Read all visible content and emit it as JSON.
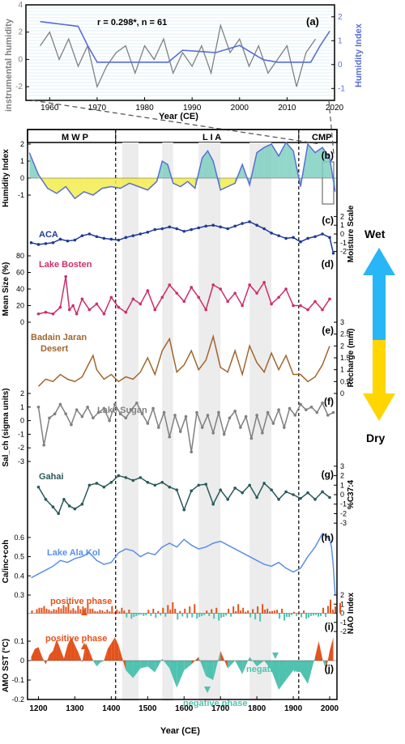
{
  "figure": {
    "top_panel": {
      "label": "(a)",
      "stat": "r = 0.298*, n = 61",
      "y_left_label": "instrumental humidity",
      "y_right_label": "Humidity Index",
      "x_label": "Year (CE)",
      "x_ticks": [
        "1960",
        "1970",
        "1980",
        "1990",
        "2000",
        "2010",
        "2020"
      ],
      "y_left_ticks": [
        "4",
        "2",
        "0",
        "-2"
      ],
      "y_right_ticks": [
        "2",
        "1",
        "0",
        "-1"
      ],
      "colors": {
        "instrumental": "#808080",
        "humidity": "#5a6fd6"
      }
    },
    "periods": {
      "mwp": "M W P",
      "lia": "L I A",
      "cmp": "CMP"
    },
    "x_axis": {
      "label": "Year (CE)",
      "ticks": [
        "1200",
        "1300",
        "1400",
        "1500",
        "1600",
        "1700",
        "1800",
        "1900",
        "2000"
      ]
    },
    "moisture_arrow": {
      "wet": "Wet",
      "dry": "Dry",
      "wet_color": "#29b6f6",
      "dry_color": "#ffd600"
    },
    "panels": [
      {
        "id": "b",
        "label": "(b)",
        "y_label": "Humidity Index",
        "ticks": [
          "2",
          "1",
          "0",
          "-1"
        ],
        "side": "left",
        "color": "#5a6fd6"
      },
      {
        "id": "c",
        "label": "(c)",
        "name": "ACA",
        "y_label": "Moisture Scale",
        "ticks": [
          "-2",
          "-1",
          "0",
          "1",
          "2"
        ],
        "side": "right",
        "color": "#1f3a93"
      },
      {
        "id": "d",
        "label": "(d)",
        "name": "Lake Bosten",
        "y_label": "Mean Size (%)",
        "ticks": [
          "80",
          "60",
          "40",
          "20",
          "0"
        ],
        "side": "left",
        "color": "#cc2e6b"
      },
      {
        "id": "e",
        "label": "(e)",
        "name": "Badain Jaran Desert",
        "y_label": "Recharge (mm)",
        "ticks": [
          "3",
          "2.5",
          "2",
          "1.5",
          "1",
          "0.5",
          "0"
        ],
        "side": "right",
        "color": "#a0662e"
      },
      {
        "id": "f",
        "label": "(f)",
        "name": "Lake Sugan",
        "y_label": "Sal_ch (sigma units)",
        "ticks": [
          "-3",
          "-2",
          "-1",
          "0",
          "1",
          "2"
        ],
        "side": "left",
        "color": "#808080"
      },
      {
        "id": "g",
        "label": "(g)",
        "name": "Gahai",
        "y_label": "%C37:4",
        "ticks": [
          "-3",
          "-2",
          "-1",
          "0",
          "1",
          "2",
          "3"
        ],
        "side": "right",
        "color": "#2a5a5a"
      },
      {
        "id": "h",
        "label": "(h)",
        "name": "Lake Ala Kol",
        "y_label": "Ca/inc+coh",
        "ticks": [
          "0.6",
          "0.5",
          "0.4",
          "0.3"
        ],
        "side": "left",
        "color": "#5b8fe8"
      },
      {
        "id": "i",
        "label": "(i)",
        "name": "NAO Index",
        "ticks": [
          "2",
          "1",
          "0",
          "-1",
          "-2"
        ],
        "side": "right",
        "positive_label": "positive phase",
        "colors": {
          "pos": "#e4521b",
          "neg": "#4fc2b0"
        }
      },
      {
        "id": "j",
        "label": "(j)",
        "y_label": "AMO SST (°C)",
        "ticks": [
          "0.1",
          "0",
          "-0.1",
          "-0.2"
        ],
        "side": "left",
        "positive_label": "positive phase",
        "negative_label_1": "negative phase",
        "negative_label_2": "negative phase",
        "colors": {
          "pos": "#e4521b",
          "neg": "#4fc2b0"
        }
      }
    ]
  },
  "chart_data": [
    {
      "type": "line",
      "panel": "a",
      "title": "",
      "xlabel": "Year (CE)",
      "ylabel": "instrumental humidity",
      "y2label": "Humidity Index",
      "xlim": [
        1955,
        2020
      ],
      "ylim": [
        -3,
        4
      ],
      "y2lim": [
        -1.5,
        2.5
      ],
      "series": [
        {
          "name": "instrumental humidity",
          "axis": "left",
          "x": [
            1958,
            1960,
            1962,
            1964,
            1966,
            1968,
            1970,
            1972,
            1974,
            1976,
            1978,
            1980,
            1982,
            1984,
            1986,
            1988,
            1990,
            1992,
            1994,
            1996,
            1998,
            2000,
            2002,
            2004,
            2006,
            2008,
            2010,
            2012,
            2014,
            2016
          ],
          "y": [
            1.0,
            2.0,
            0.0,
            1.5,
            -0.5,
            1.0,
            -2.0,
            -0.5,
            0.5,
            1.0,
            -1.0,
            1.0,
            0.0,
            1.5,
            -1.0,
            0.5,
            -0.5,
            1.0,
            -1.0,
            2.5,
            0.5,
            1.5,
            -0.5,
            1.0,
            -1.0,
            0.0,
            1.0,
            -2.0,
            0.5,
            1.5
          ]
        },
        {
          "name": "Humidity Index",
          "axis": "right",
          "x": [
            1958,
            1962,
            1966,
            1968,
            1970,
            1975,
            1985,
            1988,
            1995,
            2000,
            2005,
            2008,
            2012,
            2015,
            2017,
            2019
          ],
          "y": [
            1.8,
            1.7,
            1.6,
            0.8,
            0.1,
            0.1,
            0.1,
            0.6,
            0.5,
            0.8,
            0.2,
            0.1,
            0.1,
            0.1,
            0.8,
            1.4
          ]
        }
      ]
    },
    {
      "type": "area",
      "panel": "b",
      "xlim": [
        1170,
        2020
      ],
      "ylabel": "Humidity Index",
      "ylim": [
        -2,
        2
      ],
      "x": [
        1175,
        1200,
        1225,
        1250,
        1275,
        1300,
        1325,
        1350,
        1375,
        1400,
        1425,
        1450,
        1475,
        1500,
        1525,
        1540,
        1555,
        1570,
        1590,
        1610,
        1630,
        1650,
        1665,
        1680,
        1700,
        1720,
        1740,
        1760,
        1780,
        1800,
        1820,
        1840,
        1860,
        1880,
        1900,
        1920,
        1940,
        1960,
        1980,
        2000,
        2015
      ],
      "y": [
        1.5,
        0.2,
        -0.6,
        -0.9,
        -0.5,
        -1.2,
        -0.8,
        -1.0,
        -0.6,
        -0.5,
        -0.6,
        -0.3,
        -0.5,
        -0.7,
        -0.2,
        1.0,
        0.8,
        -0.3,
        -0.5,
        -0.2,
        -0.6,
        1.2,
        1.6,
        1.0,
        -0.7,
        -0.5,
        -0.3,
        0.8,
        -0.4,
        1.5,
        1.8,
        2.0,
        1.3,
        2.1,
        1.6,
        -0.5,
        2.0,
        1.5,
        1.8,
        1.2,
        -0.8
      ]
    },
    {
      "type": "line",
      "panel": "c",
      "name": "ACA",
      "ylabel": "Moisture Scale",
      "ylim": [
        -2.5,
        2.5
      ],
      "x": [
        1180,
        1200,
        1220,
        1240,
        1260,
        1280,
        1300,
        1320,
        1340,
        1360,
        1380,
        1400,
        1420,
        1440,
        1460,
        1480,
        1500,
        1520,
        1540,
        1560,
        1580,
        1600,
        1620,
        1640,
        1660,
        1680,
        1700,
        1720,
        1740,
        1760,
        1780,
        1800,
        1820,
        1840,
        1860,
        1880,
        1900,
        1920,
        1940,
        1960,
        1980,
        2000,
        2010
      ],
      "y": [
        -1.0,
        -1.2,
        -1.1,
        -1.0,
        -0.6,
        -0.8,
        -0.7,
        -0.2,
        0.0,
        -0.3,
        -0.5,
        -0.6,
        -0.7,
        -0.4,
        -0.2,
        0.0,
        0.2,
        0.5,
        0.6,
        0.8,
        0.6,
        0.3,
        0.5,
        0.7,
        0.9,
        1.0,
        0.8,
        0.6,
        0.9,
        1.2,
        1.4,
        1.0,
        0.6,
        0.1,
        -0.2,
        -0.5,
        -0.4,
        -0.9,
        -0.5,
        -0.3,
        0.0,
        -0.4,
        -2.2
      ]
    },
    {
      "type": "line",
      "panel": "d",
      "name": "Lake Bosten",
      "ylabel": "Mean Size (%)",
      "ylim": [
        0,
        80
      ],
      "x": [
        1200,
        1220,
        1240,
        1260,
        1275,
        1285,
        1295,
        1305,
        1320,
        1340,
        1360,
        1380,
        1400,
        1420,
        1440,
        1460,
        1480,
        1500,
        1520,
        1540,
        1560,
        1580,
        1600,
        1620,
        1640,
        1660,
        1680,
        1700,
        1720,
        1740,
        1760,
        1780,
        1800,
        1820,
        1840,
        1860,
        1880,
        1900,
        1920,
        1940,
        1960,
        1980,
        2000
      ],
      "y": [
        10,
        12,
        10,
        18,
        55,
        15,
        20,
        10,
        28,
        15,
        22,
        10,
        30,
        18,
        12,
        28,
        22,
        38,
        15,
        30,
        45,
        35,
        25,
        42,
        30,
        15,
        45,
        40,
        25,
        35,
        20,
        45,
        35,
        48,
        22,
        30,
        40,
        20,
        20,
        15,
        25,
        15,
        28
      ]
    },
    {
      "type": "line",
      "panel": "e",
      "name": "Badain Jaran Desert",
      "ylabel": "Recharge (mm)",
      "ylim": [
        0,
        3
      ],
      "x": [
        1200,
        1220,
        1240,
        1260,
        1280,
        1300,
        1320,
        1340,
        1350,
        1360,
        1380,
        1400,
        1420,
        1440,
        1460,
        1480,
        1500,
        1520,
        1540,
        1560,
        1580,
        1600,
        1620,
        1640,
        1660,
        1680,
        1700,
        1720,
        1740,
        1760,
        1780,
        1800,
        1820,
        1840,
        1860,
        1880,
        1900,
        1920,
        1940,
        1960,
        1980,
        2000
      ],
      "y": [
        0.3,
        0.6,
        0.5,
        0.8,
        0.6,
        0.5,
        0.7,
        1.3,
        1.6,
        1.0,
        0.6,
        0.8,
        0.5,
        0.7,
        0.6,
        0.9,
        1.5,
        0.8,
        1.8,
        2.3,
        0.9,
        1.2,
        1.8,
        1.0,
        1.4,
        2.4,
        1.1,
        0.9,
        1.8,
        0.8,
        2.0,
        1.3,
        0.9,
        1.7,
        1.0,
        1.6,
        0.8,
        0.8,
        0.5,
        0.7,
        1.2,
        2.0
      ]
    },
    {
      "type": "line",
      "panel": "f",
      "name": "Lake Sugan",
      "ylabel": "Sal_ch (sigma units)",
      "ylim": [
        -3,
        2
      ],
      "x": [
        1200,
        1215,
        1230,
        1245,
        1260,
        1275,
        1290,
        1305,
        1320,
        1335,
        1350,
        1365,
        1380,
        1395,
        1410,
        1425,
        1440,
        1455,
        1470,
        1485,
        1500,
        1515,
        1530,
        1545,
        1560,
        1575,
        1590,
        1605,
        1620,
        1635,
        1650,
        1665,
        1680,
        1695,
        1710,
        1725,
        1740,
        1755,
        1770,
        1785,
        1800,
        1815,
        1830,
        1845,
        1860,
        1875,
        1890,
        1905,
        1920,
        1935,
        1950,
        1965,
        1980,
        1995,
        2010
      ],
      "y": [
        1.0,
        -1.8,
        0.2,
        0.5,
        1.2,
        0.5,
        -0.3,
        0.8,
        0.3,
        1.0,
        0.2,
        0.6,
        0.9,
        0.0,
        1.2,
        0.5,
        0.2,
        0.8,
        1.3,
        0.5,
        -0.2,
        0.9,
        -0.5,
        0.6,
        -1.2,
        0.4,
        -0.8,
        0.3,
        -2.3,
        0.6,
        -0.5,
        0.4,
        -0.9,
        0.6,
        -1.0,
        0.2,
        0.7,
        -0.5,
        0.3,
        -1.3,
        0.4,
        -0.9,
        0.6,
        -0.2,
        0.8,
        -0.5,
        0.9,
        0.4,
        1.2,
        0.8,
        1.0,
        0.6,
        1.3,
        0.4,
        0.6
      ]
    },
    {
      "type": "line",
      "panel": "g",
      "name": "Gahai",
      "ylabel": "%C37:4",
      "ylim": [
        -3.5,
        3.5
      ],
      "x": [
        1200,
        1220,
        1240,
        1255,
        1270,
        1285,
        1300,
        1320,
        1340,
        1360,
        1380,
        1400,
        1420,
        1440,
        1460,
        1480,
        1500,
        1520,
        1540,
        1560,
        1580,
        1600,
        1620,
        1640,
        1660,
        1680,
        1700,
        1720,
        1740,
        1760,
        1780,
        1800,
        1820,
        1840,
        1860,
        1880,
        1900,
        1920,
        1940,
        1960,
        1980,
        2000
      ],
      "y": [
        0.8,
        -0.5,
        -1.3,
        -2.0,
        -0.5,
        -1.2,
        -1.5,
        -1.0,
        1.0,
        1.2,
        0.8,
        1.3,
        2.0,
        1.8,
        1.5,
        1.8,
        1.3,
        1.0,
        1.3,
        0.8,
        0.5,
        -1.6,
        0.4,
        1.0,
        1.1,
        -1.0,
        0.5,
        -0.5,
        0.7,
        0.2,
        1.0,
        -0.3,
        1.2,
        0.5,
        -0.5,
        0.3,
        0.0,
        -0.4,
        0.2,
        -0.5,
        0.3,
        -0.3
      ]
    },
    {
      "type": "line",
      "panel": "h",
      "name": "Lake Ala Kol",
      "ylabel": "Ca/inc+coh",
      "ylim": [
        0.3,
        0.65
      ],
      "x": [
        1180,
        1200,
        1220,
        1240,
        1260,
        1280,
        1300,
        1320,
        1340,
        1360,
        1380,
        1400,
        1420,
        1440,
        1460,
        1480,
        1500,
        1520,
        1540,
        1560,
        1580,
        1600,
        1620,
        1640,
        1660,
        1680,
        1700,
        1720,
        1740,
        1760,
        1780,
        1800,
        1820,
        1840,
        1860,
        1880,
        1900,
        1920,
        1940,
        1960,
        1980,
        2000,
        2005,
        2010,
        2015
      ],
      "y": [
        0.39,
        0.41,
        0.43,
        0.45,
        0.48,
        0.47,
        0.49,
        0.5,
        0.52,
        0.48,
        0.46,
        0.47,
        0.52,
        0.54,
        0.53,
        0.5,
        0.52,
        0.51,
        0.55,
        0.57,
        0.55,
        0.59,
        0.56,
        0.54,
        0.55,
        0.57,
        0.58,
        0.56,
        0.54,
        0.52,
        0.5,
        0.48,
        0.46,
        0.45,
        0.47,
        0.44,
        0.42,
        0.44,
        0.5,
        0.55,
        0.62,
        0.59,
        0.55,
        0.45,
        0.3
      ]
    },
    {
      "type": "bar",
      "panel": "i",
      "name": "NAO Index",
      "ylabel": "NAO Index",
      "ylim": [
        -2,
        2
      ],
      "x": [
        1180,
        1200,
        1220,
        1240,
        1260,
        1280,
        1300,
        1320,
        1340,
        1360,
        1380,
        1400,
        1420,
        1440,
        1460,
        1480,
        1500,
        1520,
        1540,
        1560,
        1580,
        1600,
        1620,
        1640,
        1660,
        1680,
        1700,
        1720,
        1740,
        1760,
        1780,
        1800,
        1820,
        1840,
        1860,
        1880,
        1900,
        1920,
        1940,
        1960,
        1980,
        2000
      ],
      "y": [
        0.6,
        0.8,
        0.5,
        0.9,
        0.7,
        1.1,
        0.6,
        1.0,
        0.5,
        0.4,
        0.2,
        0.8,
        0.4,
        -0.6,
        -0.4,
        -0.3,
        0.5,
        -0.5,
        1.2,
        0.5,
        -0.7,
        1.0,
        -0.6,
        -0.4,
        0.6,
        -0.8,
        -0.5,
        1.0,
        0.3,
        0.6,
        -0.9,
        1.0,
        0.4,
        0.5,
        -0.8,
        -0.4,
        0.3,
        -0.6,
        -0.5,
        -0.4,
        0.8,
        1.5
      ]
    },
    {
      "type": "area",
      "panel": "j",
      "name": "AMO SST",
      "ylabel": "AMO SST (°C)",
      "ylim": [
        -0.2,
        0.15
      ],
      "x": [
        1180,
        1190,
        1200,
        1210,
        1220,
        1230,
        1240,
        1250,
        1260,
        1270,
        1280,
        1290,
        1300,
        1310,
        1320,
        1330,
        1340,
        1350,
        1360,
        1370,
        1380,
        1390,
        1400,
        1410,
        1420,
        1440,
        1460,
        1480,
        1500,
        1520,
        1540,
        1560,
        1580,
        1600,
        1620,
        1640,
        1660,
        1680,
        1700,
        1720,
        1740,
        1760,
        1780,
        1800,
        1820,
        1840,
        1860,
        1880,
        1900,
        1920,
        1940,
        1960,
        1970,
        1980,
        1990,
        2000,
        2010
      ],
      "y": [
        0.02,
        0.06,
        0.07,
        0.02,
        -0.02,
        0.03,
        0.05,
        0.11,
        0.06,
        0.01,
        0.08,
        0.12,
        0.08,
        0.04,
        -0.01,
        0.09,
        0.05,
        0.0,
        -0.03,
        -0.01,
        0.0,
        0.06,
        0.09,
        0.12,
        0.08,
        -0.05,
        -0.09,
        -0.04,
        -0.03,
        -0.06,
        0.01,
        -0.04,
        -0.14,
        -0.05,
        -0.02,
        0.02,
        -0.08,
        -0.1,
        0.05,
        -0.04,
        0.0,
        -0.07,
        0.02,
        -0.03,
        0.0,
        -0.05,
        -0.15,
        -0.1,
        -0.05,
        -0.06,
        -0.12,
        0.02,
        0.1,
        0.01,
        -0.05,
        0.05,
        0.12
      ]
    }
  ]
}
